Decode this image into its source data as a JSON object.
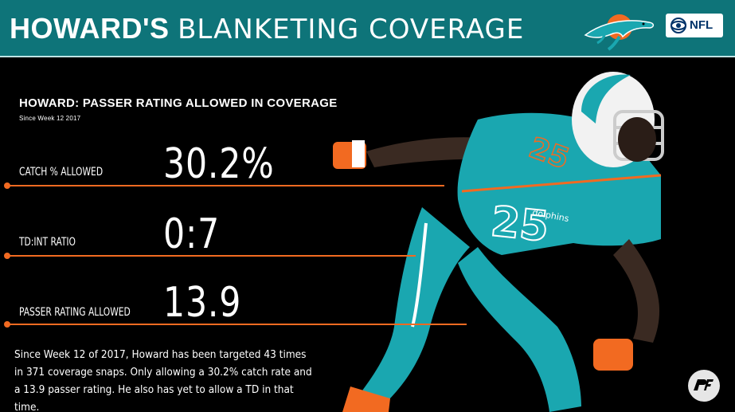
{
  "header": {
    "title_bold": "HOWARD'S",
    "title_light": "BLANKETING COVERAGE",
    "badge_text": "NFL",
    "header_color": "#0e7479"
  },
  "section": {
    "title": "HOWARD: PASSER RATING ALLOWED IN COVERAGE",
    "subtitle": "Since Week 12 2017"
  },
  "stats": [
    {
      "label": "CATCH % ALLOWED",
      "value": "30.2%"
    },
    {
      "label": "TD:INT RATIO",
      "value": "0:7"
    },
    {
      "label": "PASSER RATING ALLOWED",
      "value": "13.9"
    }
  ],
  "summary": "Since Week 12 of 2017, Howard has been targeted 43 times in 371 coverage snaps. Only allowing a 30.2% catch rate and a 13.9 passer rating. He also has yet to allow a TD in that time.",
  "jersey_number": "25",
  "jersey_wordmark": "dolphins",
  "colors": {
    "accent": "#f26a21",
    "aqua": "#1aa7b0",
    "background": "#000000"
  },
  "icons": [
    "dolphins-logo-icon",
    "cbs-eye-icon",
    "pff-logo-icon"
  ]
}
